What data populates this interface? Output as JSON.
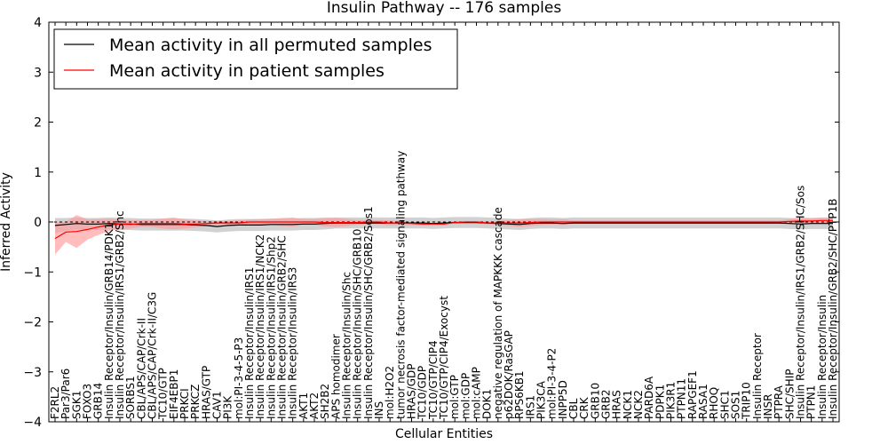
{
  "chart_data": {
    "type": "line",
    "title": "Insulin Pathway -- 176 samples",
    "xlabel": "Cellular Entities",
    "ylabel": "Inferred Activity",
    "ylim": [
      -4,
      4
    ],
    "yticks": [
      -4,
      -3,
      -2,
      -1,
      0,
      1,
      2,
      3,
      4
    ],
    "categories": [
      "F2RL2",
      "Par3/Par6",
      "SGK1",
      "FOXO3",
      "GRB14",
      "Insulin Receptor/Insulin/GRB14/PDK1",
      "Insulin Receptor/Insulin/IRS1/GRB2/Shc",
      "SORBS1",
      "CBL/APS/CAP/Crk-II",
      "CBL/APS/CAP/Crk-II/C3G",
      "TC10/GTP",
      "EIF4EBP1",
      "PRKCI",
      "PRKCZ",
      "HRAS/GTP",
      "CAV1",
      "PI3K",
      "mol:PI-3-4-5-P3",
      "Insulin Receptor/Insulin/IRS1",
      "Insulin Receptor/Insulin/IRS1/NCK2",
      "Insulin Receptor/Insulin/IRS1/Shp2",
      "Insulin Receptor/Insulin/GRB2/SHC",
      "Insulin Receptor/Insulin/IRS3",
      "AKT1",
      "AKT2",
      "SH2B2",
      "APS homodimer",
      "Insulin Receptor/Insulin/Shc",
      "Insulin Receptor/Insulin/SHC/GRB10",
      "Insulin Receptor/Insulin/SHC/GRB2/Sos1",
      "INS",
      "mol:H2O2",
      "tumor necrosis factor-mediated signaling pathway",
      "HRAS/GDP",
      "TC10/GDP",
      "TC10/GTP/CIP4",
      "TC10/GTP/CIP4/Exocyst",
      "mol:GTP",
      "mol:GDP",
      "mol:cAMP",
      "DOK1",
      "negative regulation of MAPKKK cascade",
      "p62DOK/RasGAP",
      "RPS6KB1",
      "IRS1",
      "PIK3CA",
      "mol:PI-3-4-P2",
      "INPP5D",
      "CBL",
      "CRK",
      "GRB10",
      "GRB2",
      "HRAS",
      "NCK1",
      "NCK2",
      "PARD6A",
      "PDPK1",
      "PIK3R1",
      "PTPN11",
      "RAPGEF1",
      "RASA1",
      "RHOQ",
      "SHC1",
      "SOS1",
      "TRIP10",
      "Insulin Receptor",
      "INSR",
      "PTPRA",
      "SHC/SHIP",
      "Insulin Receptor/Insulin/IRS1/GRB2/SHC/Sos",
      "PTPN1",
      "Insulin Receptor/Insulin",
      "Insulin Receptor/Insulin/GRB2/SHC/PTP1B"
    ],
    "series": [
      {
        "name": "Mean activity in all permuted samples",
        "color": "#000000",
        "band_color": "#b3b3b3",
        "values": [
          -0.07,
          -0.05,
          -0.03,
          -0.04,
          -0.04,
          -0.03,
          -0.04,
          -0.04,
          -0.05,
          -0.05,
          -0.05,
          -0.05,
          -0.05,
          -0.06,
          -0.07,
          -0.09,
          -0.07,
          -0.06,
          -0.06,
          -0.06,
          -0.05,
          -0.05,
          -0.05,
          -0.04,
          -0.04,
          -0.03,
          -0.02,
          -0.02,
          -0.02,
          -0.02,
          -0.02,
          -0.02,
          -0.02,
          -0.02,
          -0.02,
          -0.03,
          -0.02,
          -0.01,
          -0.01,
          -0.01,
          -0.02,
          -0.03,
          -0.04,
          -0.05,
          -0.03,
          -0.02,
          -0.02,
          -0.03,
          -0.02,
          -0.02,
          -0.02,
          -0.02,
          -0.02,
          -0.02,
          -0.02,
          -0.02,
          -0.02,
          -0.02,
          -0.02,
          -0.02,
          -0.02,
          -0.02,
          -0.02,
          -0.02,
          -0.02,
          -0.02,
          -0.02,
          -0.02,
          -0.03,
          -0.04,
          -0.03,
          -0.03,
          -0.03
        ],
        "spread": [
          0.15,
          0.13,
          0.12,
          0.12,
          0.12,
          0.12,
          0.12,
          0.12,
          0.12,
          0.12,
          0.12,
          0.12,
          0.12,
          0.12,
          0.12,
          0.12,
          0.12,
          0.12,
          0.12,
          0.12,
          0.12,
          0.12,
          0.12,
          0.12,
          0.12,
          0.12,
          0.11,
          0.11,
          0.11,
          0.11,
          0.11,
          0.11,
          0.11,
          0.11,
          0.11,
          0.11,
          0.11,
          0.11,
          0.11,
          0.11,
          0.11,
          0.11,
          0.11,
          0.11,
          0.11,
          0.11,
          0.11,
          0.11,
          0.11,
          0.11,
          0.11,
          0.11,
          0.11,
          0.11,
          0.11,
          0.11,
          0.11,
          0.11,
          0.11,
          0.11,
          0.11,
          0.11,
          0.11,
          0.11,
          0.11,
          0.11,
          0.11,
          0.11,
          0.11,
          0.11,
          0.11,
          0.11,
          0.11
        ]
      },
      {
        "name": "Mean activity in patient samples",
        "color": "#ff0000",
        "band_color": "#ff9a9a",
        "values": [
          -0.33,
          -0.2,
          -0.19,
          -0.15,
          -0.1,
          -0.06,
          -0.04,
          -0.05,
          -0.03,
          -0.03,
          -0.03,
          -0.03,
          -0.04,
          -0.04,
          -0.03,
          -0.02,
          -0.02,
          -0.02,
          0.0,
          0.0,
          0.0,
          0.0,
          0.0,
          0.0,
          0.0,
          -0.01,
          -0.01,
          -0.01,
          -0.01,
          0.0,
          0.0,
          -0.02,
          -0.02,
          -0.03,
          -0.04,
          -0.04,
          -0.04,
          -0.01,
          0.0,
          0.0,
          -0.02,
          -0.02,
          -0.02,
          -0.02,
          -0.01,
          0.0,
          0.0,
          0.0,
          0.0,
          0.0,
          0.0,
          0.0,
          0.0,
          0.0,
          0.0,
          0.0,
          0.0,
          0.0,
          0.0,
          0.0,
          0.0,
          0.0,
          0.0,
          0.0,
          0.0,
          0.0,
          0.0,
          0.0,
          0.01,
          0.02,
          0.02,
          0.03,
          0.03
        ],
        "spread": [
          0.32,
          0.2,
          0.33,
          0.2,
          0.16,
          0.12,
          0.1,
          0.08,
          0.07,
          0.07,
          0.1,
          0.12,
          0.09,
          0.07,
          0.05,
          0.04,
          0.04,
          0.05,
          0.05,
          0.06,
          0.06,
          0.08,
          0.09,
          0.06,
          0.06,
          0.08,
          0.09,
          0.07,
          0.05,
          0.04,
          0.04,
          0.05,
          0.04,
          0.03,
          0.02,
          0.02,
          0.02,
          0.02,
          0.02,
          0.02,
          0.03,
          0.04,
          0.06,
          0.08,
          0.07,
          0.06,
          0.05,
          0.06,
          0.03,
          0.03,
          0.03,
          0.03,
          0.03,
          0.03,
          0.03,
          0.03,
          0.03,
          0.03,
          0.03,
          0.03,
          0.03,
          0.03,
          0.03,
          0.03,
          0.03,
          0.03,
          0.03,
          0.03,
          0.05,
          0.07,
          0.06,
          0.06,
          0.06
        ]
      }
    ],
    "legend": {
      "position": "top-left"
    },
    "grid": false
  }
}
